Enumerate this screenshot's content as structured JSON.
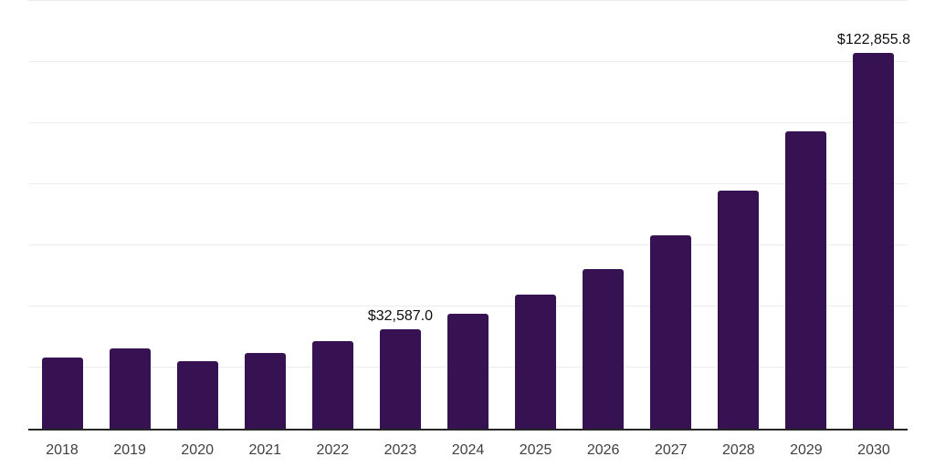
{
  "chart_data": {
    "type": "bar",
    "title": "",
    "xlabel": "",
    "ylabel": "",
    "categories": [
      "2018",
      "2019",
      "2020",
      "2021",
      "2022",
      "2023",
      "2024",
      "2025",
      "2026",
      "2027",
      "2028",
      "2029",
      "2030"
    ],
    "values": [
      23300,
      26300,
      22100,
      24900,
      28700,
      32587.0,
      37500,
      43800,
      52200,
      63200,
      77800,
      97300,
      122855.8
    ],
    "data_labels": [
      {
        "category": "2023",
        "text": "$32,587.0"
      },
      {
        "category": "2030",
        "text": "$122,855.8"
      }
    ],
    "ylim": [
      0,
      140000
    ],
    "gridline_step": 20000,
    "grid": true,
    "y_axis_tick_labels_visible": false,
    "legend": false,
    "colors": {
      "bar": "#371253",
      "gridline": "#ededed",
      "axis": "#262626",
      "x_tick_label": "#404040",
      "data_label": "#0d0d0d",
      "background": "#ffffff"
    }
  }
}
